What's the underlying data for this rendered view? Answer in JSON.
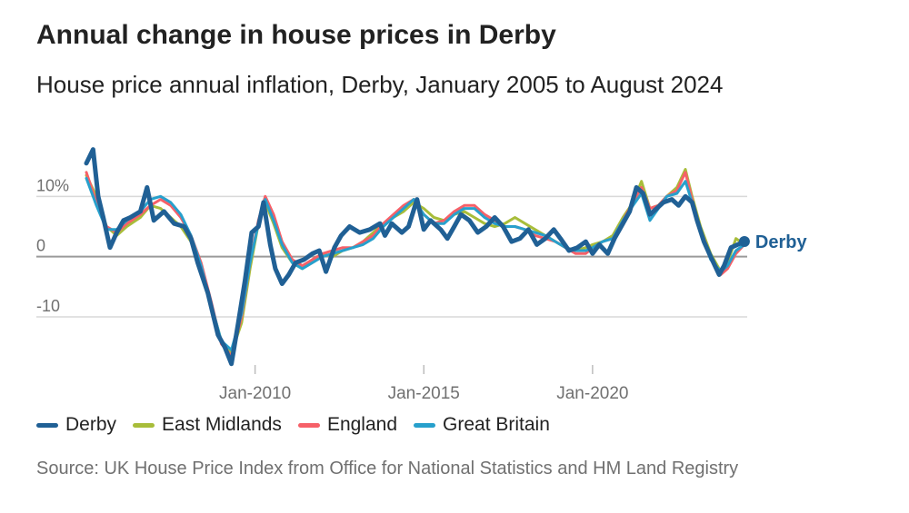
{
  "chart_data": {
    "type": "line",
    "title": "Annual change in house prices in Derby",
    "subtitle": "House price annual inflation, Derby, January 2005 to August 2024",
    "xlabel": "",
    "ylabel": "",
    "x_range": [
      2005.0,
      2024.583
    ],
    "ylim": [
      -18,
      20
    ],
    "y_ticks": [
      {
        "value": 10,
        "label": "10%"
      },
      {
        "value": 0,
        "label": "0"
      },
      {
        "value": -10,
        "label": "-10"
      }
    ],
    "x_ticks": [
      {
        "value": 2010.0,
        "label": "Jan-2010"
      },
      {
        "value": 2015.0,
        "label": "Jan-2015"
      },
      {
        "value": 2020.0,
        "label": "Jan-2020"
      }
    ],
    "end_label": "Derby",
    "series": [
      {
        "name": "Derby",
        "color": "#206095",
        "points": [
          [
            2005.0,
            15.5
          ],
          [
            2005.2,
            17.8
          ],
          [
            2005.35,
            10
          ],
          [
            2005.5,
            6.5
          ],
          [
            2005.7,
            1.5
          ],
          [
            2005.9,
            4
          ],
          [
            2006.1,
            6
          ],
          [
            2006.3,
            6.5
          ],
          [
            2006.6,
            7.5
          ],
          [
            2006.8,
            11.5
          ],
          [
            2007.0,
            6
          ],
          [
            2007.3,
            7.5
          ],
          [
            2007.6,
            5.5
          ],
          [
            2007.9,
            5
          ],
          [
            2008.1,
            3
          ],
          [
            2008.3,
            -1
          ],
          [
            2008.6,
            -6
          ],
          [
            2008.9,
            -13
          ],
          [
            2009.1,
            -15
          ],
          [
            2009.3,
            -17.8
          ],
          [
            2009.5,
            -11
          ],
          [
            2009.7,
            -4
          ],
          [
            2009.9,
            4
          ],
          [
            2010.1,
            5
          ],
          [
            2010.25,
            9
          ],
          [
            2010.45,
            2
          ],
          [
            2010.6,
            -2
          ],
          [
            2010.8,
            -4.5
          ],
          [
            2011.0,
            -3
          ],
          [
            2011.2,
            -1
          ],
          [
            2011.45,
            -0.5
          ],
          [
            2011.7,
            0.5
          ],
          [
            2011.9,
            1
          ],
          [
            2012.1,
            -2.5
          ],
          [
            2012.35,
            1.5
          ],
          [
            2012.55,
            3.5
          ],
          [
            2012.8,
            5
          ],
          [
            2013.1,
            4
          ],
          [
            2013.4,
            4.5
          ],
          [
            2013.7,
            5.5
          ],
          [
            2013.85,
            3.5
          ],
          [
            2014.05,
            5.5
          ],
          [
            2014.35,
            4
          ],
          [
            2014.55,
            5
          ],
          [
            2014.8,
            9.5
          ],
          [
            2015.0,
            4.5
          ],
          [
            2015.2,
            6
          ],
          [
            2015.5,
            4.5
          ],
          [
            2015.7,
            3
          ],
          [
            2015.9,
            5
          ],
          [
            2016.1,
            7
          ],
          [
            2016.35,
            6
          ],
          [
            2016.6,
            4
          ],
          [
            2016.85,
            5
          ],
          [
            2017.1,
            6.5
          ],
          [
            2017.35,
            5
          ],
          [
            2017.6,
            2.5
          ],
          [
            2017.85,
            3
          ],
          [
            2018.1,
            4.5
          ],
          [
            2018.35,
            2
          ],
          [
            2018.6,
            3
          ],
          [
            2018.85,
            4.5
          ],
          [
            2019.05,
            3
          ],
          [
            2019.3,
            1
          ],
          [
            2019.55,
            1.5
          ],
          [
            2019.8,
            2.5
          ],
          [
            2020.0,
            0.5
          ],
          [
            2020.2,
            2
          ],
          [
            2020.45,
            0.5
          ],
          [
            2020.65,
            3
          ],
          [
            2020.9,
            5.5
          ],
          [
            2021.1,
            7.5
          ],
          [
            2021.3,
            11.5
          ],
          [
            2021.5,
            10.5
          ],
          [
            2021.7,
            7
          ],
          [
            2021.9,
            8
          ],
          [
            2022.1,
            9
          ],
          [
            2022.35,
            9.5
          ],
          [
            2022.55,
            8.5
          ],
          [
            2022.75,
            10
          ],
          [
            2022.95,
            9
          ],
          [
            2023.1,
            6
          ],
          [
            2023.3,
            2.5
          ],
          [
            2023.5,
            0
          ],
          [
            2023.75,
            -3
          ],
          [
            2023.9,
            -1.5
          ],
          [
            2024.1,
            1.5
          ],
          [
            2024.3,
            2
          ],
          [
            2024.5,
            2.5
          ]
        ]
      },
      {
        "name": "East Midlands",
        "color": "#a8bd3a",
        "points": [
          [
            2005.0,
            13.5
          ],
          [
            2005.3,
            10
          ],
          [
            2005.6,
            5
          ],
          [
            2005.9,
            3.5
          ],
          [
            2006.2,
            5
          ],
          [
            2006.6,
            6.5
          ],
          [
            2006.9,
            8.5
          ],
          [
            2007.2,
            8
          ],
          [
            2007.5,
            6.5
          ],
          [
            2007.8,
            5
          ],
          [
            2008.1,
            2.5
          ],
          [
            2008.4,
            -2
          ],
          [
            2008.7,
            -8
          ],
          [
            2009.0,
            -14
          ],
          [
            2009.3,
            -16
          ],
          [
            2009.6,
            -11
          ],
          [
            2009.85,
            -2
          ],
          [
            2010.1,
            5.5
          ],
          [
            2010.3,
            9
          ],
          [
            2010.55,
            5.5
          ],
          [
            2010.8,
            1.5
          ],
          [
            2011.1,
            -1
          ],
          [
            2011.4,
            -2
          ],
          [
            2011.7,
            -0.5
          ],
          [
            2012.0,
            0.5
          ],
          [
            2012.3,
            0
          ],
          [
            2012.6,
            1
          ],
          [
            2012.9,
            1.5
          ],
          [
            2013.2,
            2.5
          ],
          [
            2013.5,
            4
          ],
          [
            2013.8,
            5.5
          ],
          [
            2014.1,
            6.5
          ],
          [
            2014.4,
            7.5
          ],
          [
            2014.7,
            9
          ],
          [
            2015.0,
            8
          ],
          [
            2015.3,
            6.5
          ],
          [
            2015.6,
            6
          ],
          [
            2015.9,
            7
          ],
          [
            2016.2,
            7.5
          ],
          [
            2016.5,
            6.5
          ],
          [
            2016.8,
            5.5
          ],
          [
            2017.1,
            5
          ],
          [
            2017.4,
            5.5
          ],
          [
            2017.7,
            6.5
          ],
          [
            2018.0,
            5.5
          ],
          [
            2018.3,
            4.5
          ],
          [
            2018.6,
            3.5
          ],
          [
            2018.9,
            2.5
          ],
          [
            2019.2,
            1.5
          ],
          [
            2019.5,
            1
          ],
          [
            2019.8,
            1.5
          ],
          [
            2020.0,
            2
          ],
          [
            2020.3,
            2.5
          ],
          [
            2020.6,
            3.5
          ],
          [
            2020.9,
            6.5
          ],
          [
            2021.2,
            9
          ],
          [
            2021.45,
            12.5
          ],
          [
            2021.7,
            8
          ],
          [
            2021.95,
            8.5
          ],
          [
            2022.2,
            10
          ],
          [
            2022.5,
            11.5
          ],
          [
            2022.75,
            14.5
          ],
          [
            2022.95,
            10
          ],
          [
            2023.2,
            5
          ],
          [
            2023.5,
            0.5
          ],
          [
            2023.8,
            -2.5
          ],
          [
            2024.0,
            -1
          ],
          [
            2024.25,
            3
          ],
          [
            2024.5,
            2
          ]
        ]
      },
      {
        "name": "England",
        "color": "#f66068",
        "points": [
          [
            2005.0,
            14
          ],
          [
            2005.3,
            9
          ],
          [
            2005.6,
            5
          ],
          [
            2005.9,
            4
          ],
          [
            2006.2,
            5.5
          ],
          [
            2006.6,
            7
          ],
          [
            2006.9,
            8.5
          ],
          [
            2007.2,
            9.5
          ],
          [
            2007.5,
            8.5
          ],
          [
            2007.8,
            6.5
          ],
          [
            2008.1,
            3.5
          ],
          [
            2008.4,
            -1
          ],
          [
            2008.7,
            -7.5
          ],
          [
            2009.0,
            -14.5
          ],
          [
            2009.3,
            -16.5
          ],
          [
            2009.6,
            -10
          ],
          [
            2009.85,
            -1
          ],
          [
            2010.1,
            6
          ],
          [
            2010.3,
            10
          ],
          [
            2010.55,
            7
          ],
          [
            2010.8,
            2.5
          ],
          [
            2011.1,
            -0.5
          ],
          [
            2011.4,
            -1.5
          ],
          [
            2011.7,
            -0.5
          ],
          [
            2012.0,
            0.5
          ],
          [
            2012.3,
            1
          ],
          [
            2012.6,
            1.5
          ],
          [
            2012.9,
            1.5
          ],
          [
            2013.2,
            2.5
          ],
          [
            2013.5,
            3.5
          ],
          [
            2013.8,
            5.5
          ],
          [
            2014.1,
            7
          ],
          [
            2014.4,
            8.5
          ],
          [
            2014.7,
            9.5
          ],
          [
            2015.0,
            7
          ],
          [
            2015.3,
            5.5
          ],
          [
            2015.6,
            6
          ],
          [
            2015.9,
            7.5
          ],
          [
            2016.2,
            8.5
          ],
          [
            2016.5,
            8.5
          ],
          [
            2016.8,
            7
          ],
          [
            2017.1,
            6
          ],
          [
            2017.4,
            5
          ],
          [
            2017.7,
            5
          ],
          [
            2018.0,
            4.5
          ],
          [
            2018.3,
            3.5
          ],
          [
            2018.6,
            3
          ],
          [
            2018.9,
            2.5
          ],
          [
            2019.2,
            1.5
          ],
          [
            2019.5,
            0.5
          ],
          [
            2019.8,
            0.5
          ],
          [
            2020.0,
            1.5
          ],
          [
            2020.3,
            2.5
          ],
          [
            2020.6,
            3
          ],
          [
            2020.9,
            6
          ],
          [
            2021.2,
            9
          ],
          [
            2021.45,
            11.5
          ],
          [
            2021.7,
            8
          ],
          [
            2021.95,
            8.5
          ],
          [
            2022.2,
            10
          ],
          [
            2022.5,
            11
          ],
          [
            2022.75,
            14
          ],
          [
            2022.95,
            9.5
          ],
          [
            2023.2,
            4.5
          ],
          [
            2023.5,
            0
          ],
          [
            2023.8,
            -3
          ],
          [
            2024.0,
            -2
          ],
          [
            2024.25,
            0.5
          ],
          [
            2024.5,
            2
          ]
        ]
      },
      {
        "name": "Great Britain",
        "color": "#27a0cc",
        "points": [
          [
            2005.0,
            13
          ],
          [
            2005.3,
            8.5
          ],
          [
            2005.6,
            4.5
          ],
          [
            2005.9,
            4.5
          ],
          [
            2006.2,
            6
          ],
          [
            2006.6,
            7.5
          ],
          [
            2006.9,
            9.5
          ],
          [
            2007.2,
            10
          ],
          [
            2007.5,
            9
          ],
          [
            2007.8,
            7
          ],
          [
            2008.1,
            3.5
          ],
          [
            2008.4,
            -1.5
          ],
          [
            2008.7,
            -8
          ],
          [
            2009.0,
            -14
          ],
          [
            2009.3,
            -15.5
          ],
          [
            2009.6,
            -9.5
          ],
          [
            2009.85,
            -1
          ],
          [
            2010.1,
            5.5
          ],
          [
            2010.3,
            9.5
          ],
          [
            2010.55,
            6
          ],
          [
            2010.8,
            2
          ],
          [
            2011.1,
            -1
          ],
          [
            2011.4,
            -2
          ],
          [
            2011.7,
            -1
          ],
          [
            2012.0,
            0
          ],
          [
            2012.3,
            0.5
          ],
          [
            2012.6,
            1
          ],
          [
            2012.9,
            1.5
          ],
          [
            2013.2,
            2
          ],
          [
            2013.5,
            3
          ],
          [
            2013.8,
            5
          ],
          [
            2014.1,
            6.5
          ],
          [
            2014.4,
            8
          ],
          [
            2014.7,
            9.5
          ],
          [
            2015.0,
            7
          ],
          [
            2015.3,
            5.5
          ],
          [
            2015.6,
            5.5
          ],
          [
            2015.9,
            7
          ],
          [
            2016.2,
            8
          ],
          [
            2016.5,
            8
          ],
          [
            2016.8,
            6.5
          ],
          [
            2017.1,
            5.5
          ],
          [
            2017.4,
            5
          ],
          [
            2017.7,
            5
          ],
          [
            2018.0,
            4.5
          ],
          [
            2018.3,
            4
          ],
          [
            2018.6,
            3.5
          ],
          [
            2018.9,
            2.5
          ],
          [
            2019.2,
            1.5
          ],
          [
            2019.5,
            1
          ],
          [
            2019.8,
            1
          ],
          [
            2020.0,
            1.5
          ],
          [
            2020.3,
            2.5
          ],
          [
            2020.6,
            3
          ],
          [
            2020.9,
            6
          ],
          [
            2021.2,
            8.5
          ],
          [
            2021.45,
            10.5
          ],
          [
            2021.7,
            6
          ],
          [
            2021.95,
            8
          ],
          [
            2022.2,
            10
          ],
          [
            2022.5,
            10.5
          ],
          [
            2022.75,
            12.5
          ],
          [
            2022.95,
            9
          ],
          [
            2023.2,
            4
          ],
          [
            2023.5,
            -0.5
          ],
          [
            2023.8,
            -2.5
          ],
          [
            2024.0,
            -1.5
          ],
          [
            2024.25,
            1
          ],
          [
            2024.5,
            2
          ]
        ]
      }
    ]
  },
  "legend": {
    "items": [
      {
        "label": "Derby",
        "color": "#206095"
      },
      {
        "label": "East Midlands",
        "color": "#a8bd3a"
      },
      {
        "label": "England",
        "color": "#f66068"
      },
      {
        "label": "Great Britain",
        "color": "#27a0cc"
      }
    ]
  },
  "source": "Source: UK House Price Index from Office for National Statistics and HM Land Registry"
}
